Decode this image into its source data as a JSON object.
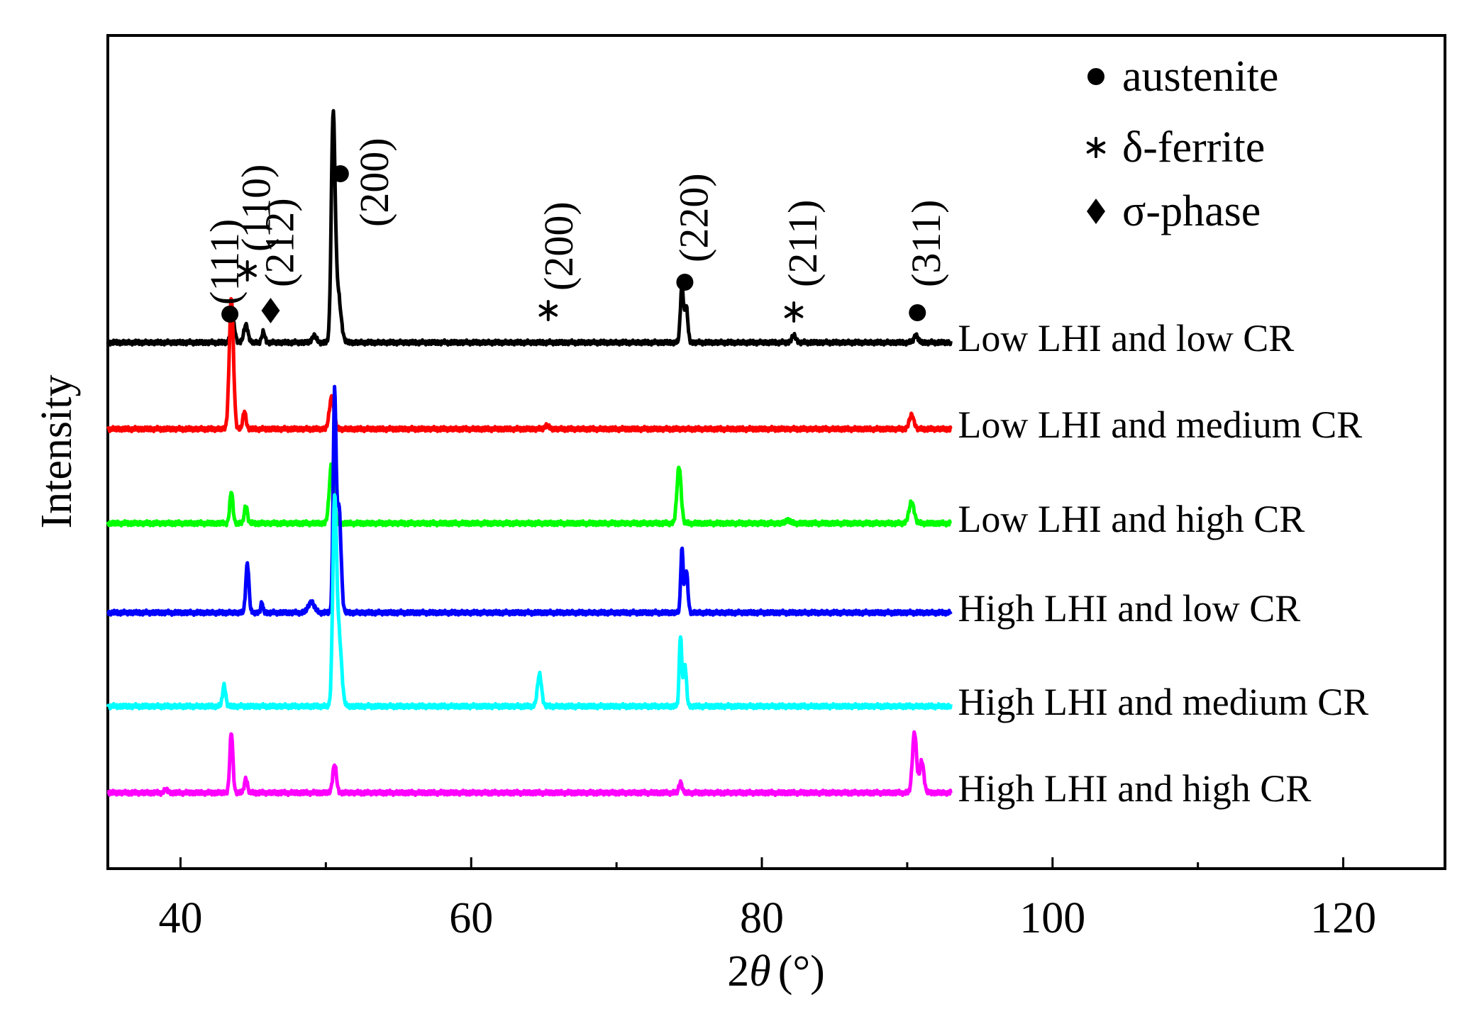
{
  "chart_data": {
    "type": "line",
    "xlabel_number": "2",
    "xlabel_symbol": "θ",
    "xlabel_unit": "(°)",
    "ylabel": "Intensity",
    "xlim": [
      35,
      127
    ],
    "xticks": [
      40,
      60,
      80,
      100,
      120
    ],
    "grid": false,
    "legend_position": "top-right",
    "legend": [
      {
        "symbol": "circle",
        "label": "austenite"
      },
      {
        "symbol": "asterisk",
        "label": "δ-ferrite"
      },
      {
        "symbol": "diamond",
        "label": "σ-phase"
      }
    ],
    "peak_annotations": [
      {
        "x": 43.4,
        "symbol": "circle",
        "label": "(111)"
      },
      {
        "x": 44.6,
        "symbol": "asterisk",
        "label": "(110)"
      },
      {
        "x": 46.2,
        "symbol": "diamond",
        "label": "(212)"
      },
      {
        "x": 51.0,
        "symbol": "circle",
        "label": "(200)"
      },
      {
        "x": 65.3,
        "symbol": "asterisk",
        "label": "(200)"
      },
      {
        "x": 74.7,
        "symbol": "circle",
        "label": "(220)"
      },
      {
        "x": 82.2,
        "symbol": "asterisk",
        "label": "(211)"
      },
      {
        "x": 90.7,
        "symbol": "circle",
        "label": "(311)"
      }
    ],
    "x_range": [
      35,
      93
    ],
    "series": [
      {
        "name": "Low LHI and low CR",
        "color": "#000000",
        "peaks": [
          {
            "x": 43.6,
            "intensity": 0.06,
            "width": 0.2
          },
          {
            "x": 44.5,
            "intensity": 0.05,
            "width": 0.2
          },
          {
            "x": 45.7,
            "intensity": 0.03,
            "width": 0.15
          },
          {
            "x": 49.2,
            "intensity": 0.02,
            "width": 0.2
          },
          {
            "x": 50.5,
            "intensity": 0.6,
            "width": 0.18
          },
          {
            "x": 50.8,
            "intensity": 0.15,
            "width": 0.3
          },
          {
            "x": 74.5,
            "intensity": 0.16,
            "width": 0.15
          },
          {
            "x": 74.8,
            "intensity": 0.1,
            "width": 0.15
          },
          {
            "x": 82.2,
            "intensity": 0.02,
            "width": 0.2
          },
          {
            "x": 90.6,
            "intensity": 0.02,
            "width": 0.2
          }
        ]
      },
      {
        "name": "Low LHI and medium CR",
        "color": "#ff0000",
        "peaks": [
          {
            "x": 43.5,
            "intensity": 0.37,
            "width": 0.2
          },
          {
            "x": 44.4,
            "intensity": 0.05,
            "width": 0.15
          },
          {
            "x": 50.4,
            "intensity": 0.09,
            "width": 0.22
          },
          {
            "x": 65.2,
            "intensity": 0.01,
            "width": 0.2
          },
          {
            "x": 90.3,
            "intensity": 0.04,
            "width": 0.22
          }
        ]
      },
      {
        "name": "Low LHI and high CR",
        "color": "#00ff00",
        "peaks": [
          {
            "x": 43.5,
            "intensity": 0.09,
            "width": 0.15
          },
          {
            "x": 44.5,
            "intensity": 0.05,
            "width": 0.15
          },
          {
            "x": 50.4,
            "intensity": 0.17,
            "width": 0.22
          },
          {
            "x": 74.3,
            "intensity": 0.16,
            "width": 0.2
          },
          {
            "x": 81.8,
            "intensity": 0.01,
            "width": 0.2
          },
          {
            "x": 90.3,
            "intensity": 0.06,
            "width": 0.25
          }
        ]
      },
      {
        "name": "High LHI and low CR",
        "color": "#0000ff",
        "peaks": [
          {
            "x": 44.6,
            "intensity": 0.14,
            "width": 0.15
          },
          {
            "x": 45.6,
            "intensity": 0.03,
            "width": 0.1
          },
          {
            "x": 49.0,
            "intensity": 0.03,
            "width": 0.3
          },
          {
            "x": 50.6,
            "intensity": 0.6,
            "width": 0.14
          },
          {
            "x": 50.9,
            "intensity": 0.3,
            "width": 0.2
          },
          {
            "x": 74.5,
            "intensity": 0.18,
            "width": 0.12
          },
          {
            "x": 74.8,
            "intensity": 0.12,
            "width": 0.15
          }
        ]
      },
      {
        "name": "High LHI and medium CR",
        "color": "#00ffff",
        "peaks": [
          {
            "x": 43.0,
            "intensity": 0.06,
            "width": 0.15
          },
          {
            "x": 50.6,
            "intensity": 0.55,
            "width": 0.18
          },
          {
            "x": 50.9,
            "intensity": 0.2,
            "width": 0.25
          },
          {
            "x": 64.7,
            "intensity": 0.09,
            "width": 0.2
          },
          {
            "x": 74.4,
            "intensity": 0.2,
            "width": 0.12
          },
          {
            "x": 74.7,
            "intensity": 0.12,
            "width": 0.15
          }
        ]
      },
      {
        "name": "High LHI and high CR",
        "color": "#ff00ff",
        "peaks": [
          {
            "x": 39.0,
            "intensity": 0.01,
            "width": 0.15
          },
          {
            "x": 43.5,
            "intensity": 0.17,
            "width": 0.15
          },
          {
            "x": 44.5,
            "intensity": 0.04,
            "width": 0.15
          },
          {
            "x": 50.6,
            "intensity": 0.08,
            "width": 0.18
          },
          {
            "x": 74.4,
            "intensity": 0.03,
            "width": 0.15
          },
          {
            "x": 90.5,
            "intensity": 0.17,
            "width": 0.2
          },
          {
            "x": 91.0,
            "intensity": 0.09,
            "width": 0.2
          }
        ]
      }
    ]
  }
}
